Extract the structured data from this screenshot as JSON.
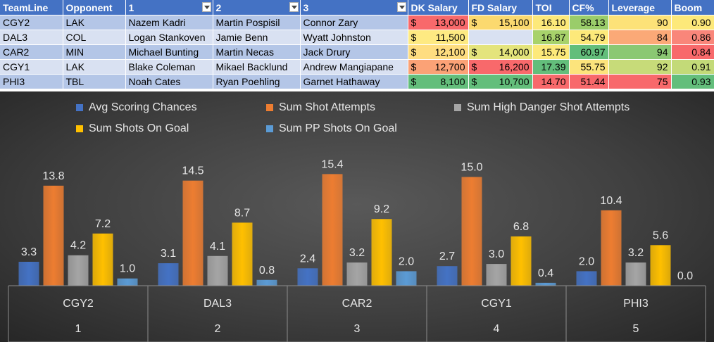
{
  "table": {
    "headers": [
      "TeamLine",
      "Opponent",
      "1",
      "2",
      "3",
      "DK Salary",
      "FD Salary",
      "TOI",
      "CF%",
      "Leverage",
      "Boom"
    ],
    "filter_columns": [
      2,
      3,
      4
    ],
    "rows": [
      {
        "team": "CGY2",
        "opp": "LAK",
        "p1": "Nazem Kadri",
        "p2": "Martin Pospisil",
        "p3": "Connor Zary",
        "dk": "13,000",
        "fd": "15,100",
        "toi": "16.10",
        "cf": "58.13",
        "lev": "90",
        "boom": "0.90",
        "colors": {
          "dk": "#f8696b",
          "fd": "#fbd96f",
          "toi": "#fde97a",
          "cf": "#9acd6a",
          "lev": "#fde278",
          "boom": "#fde97a"
        }
      },
      {
        "team": "DAL3",
        "opp": "COL",
        "p1": "Logan Stankoven",
        "p2": "Jamie Benn",
        "p3": "Wyatt Johnston",
        "dk": "11,500",
        "fd": "",
        "toi": "16.87",
        "cf": "54.79",
        "lev": "84",
        "boom": "0.86",
        "colors": {
          "dk": "#feea82",
          "fd": "",
          "toi": "#a8d26b",
          "cf": "#fde97a",
          "lev": "#fba977",
          "boom": "#f9867a"
        }
      },
      {
        "team": "CAR2",
        "opp": "MIN",
        "p1": "Michael Bunting",
        "p2": "Martin Necas",
        "p3": "Jack Drury",
        "dk": "12,100",
        "fd": "14,000",
        "toi": "15.75",
        "cf": "60.97",
        "lev": "94",
        "boom": "0.84",
        "colors": {
          "dk": "#fedd80",
          "fd": "#e4e47c",
          "toi": "#fde97a",
          "cf": "#63be7b",
          "lev": "#8bc873",
          "boom": "#f8696b"
        }
      },
      {
        "team": "CGY1",
        "opp": "LAK",
        "p1": "Blake Coleman",
        "p2": "Mikael Backlund",
        "p3": "Andrew Mangiapane",
        "dk": "12,700",
        "fd": "16,200",
        "toi": "17.39",
        "cf": "55.75",
        "lev": "92",
        "boom": "0.91",
        "colors": {
          "dk": "#fba276",
          "fd": "#f8696b",
          "toi": "#63be7b",
          "cf": "#fce47c",
          "lev": "#c7db79",
          "boom": "#c3da78"
        }
      },
      {
        "team": "PHI3",
        "opp": "TBL",
        "p1": "Noah Cates",
        "p2": "Ryan Poehling",
        "p3": "Garnet Hathaway",
        "dk": "8,100",
        "fd": "10,700",
        "toi": "14.70",
        "cf": "51.44",
        "lev": "75",
        "boom": "0.93",
        "colors": {
          "dk": "#63be7b",
          "fd": "#63be7b",
          "toi": "#f8696b",
          "cf": "#f8696b",
          "lev": "#f8696b",
          "boom": "#63be7b"
        }
      }
    ],
    "currency": "$"
  },
  "chart_data": {
    "type": "bar",
    "categories": [
      "CGY2",
      "DAL3",
      "CAR2",
      "CGY1",
      "PHI3"
    ],
    "category_index": [
      "1",
      "2",
      "3",
      "4",
      "5"
    ],
    "series": [
      {
        "name": "Avg Scoring Chances",
        "color": "#4472c4",
        "values": [
          3.3,
          3.1,
          2.4,
          2.7,
          2.0
        ]
      },
      {
        "name": "Sum Shot Attempts",
        "color": "#ed7d31",
        "values": [
          13.8,
          14.5,
          15.4,
          15.0,
          10.4
        ]
      },
      {
        "name": "Sum High Danger Shot Attempts",
        "color": "#a5a5a5",
        "values": [
          4.2,
          4.1,
          3.2,
          3.0,
          3.2
        ]
      },
      {
        "name": "Sum Shots On Goal",
        "color": "#ffc000",
        "values": [
          7.2,
          8.7,
          9.2,
          6.8,
          5.6
        ]
      },
      {
        "name": "Sum PP Shots On Goal",
        "color": "#5b9bd5",
        "values": [
          1.0,
          0.8,
          2.0,
          0.4,
          0.0
        ]
      }
    ],
    "value_labels": [
      [
        "3.3",
        "3.1",
        "2.4",
        "2.7",
        "2.0"
      ],
      [
        "13.8",
        "14.5",
        "15.4",
        "15.0",
        "10.4"
      ],
      [
        "4.2",
        "4.1",
        "3.2",
        "3.0",
        "3.2"
      ],
      [
        "7.2",
        "8.7",
        "9.2",
        "6.8",
        "5.6"
      ],
      [
        "1.0",
        "0.8",
        "2.0",
        "0.4",
        "0.0"
      ]
    ],
    "ylim": [
      0,
      20
    ],
    "legend_position": "top",
    "grid": false
  }
}
